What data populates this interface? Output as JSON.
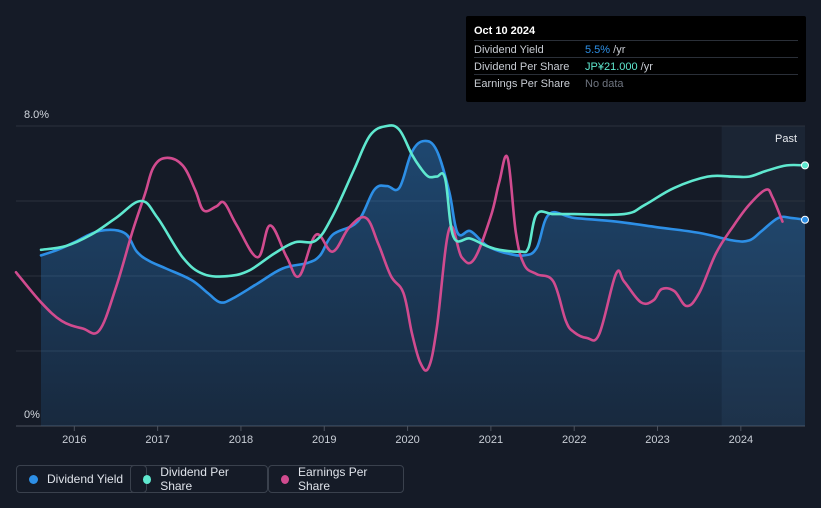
{
  "tooltip": {
    "date": "Oct 10 2024",
    "rows": [
      {
        "label": "Dividend Yield",
        "value": "5.5%",
        "unit": " /yr",
        "color": "#2d8fe6"
      },
      {
        "label": "Dividend Per Share",
        "value": "JP¥21.000",
        "unit": " /yr",
        "color": "#5fe8cf"
      },
      {
        "label": "Earnings Per Share",
        "value": "No data",
        "unit": "",
        "color": "#6f7580"
      }
    ]
  },
  "legend": [
    {
      "label": "Dividend Yield",
      "color": "#2d8fe6"
    },
    {
      "label": "Dividend Per Share",
      "color": "#5fe8cf"
    },
    {
      "label": "Earnings Per Share",
      "color": "#d14b8f"
    }
  ],
  "chart_data": {
    "type": "line",
    "title": "",
    "past_label": "Past",
    "y_axis": {
      "label_top": "8.0%",
      "label_bottom": "0%",
      "ylim": [
        0,
        8
      ]
    },
    "xlim": [
      2015.3,
      2024.77
    ],
    "x_ticks": [
      {
        "label": "2016",
        "value": 2016
      },
      {
        "label": "2017",
        "value": 2017
      },
      {
        "label": "2018",
        "value": 2018
      },
      {
        "label": "2019",
        "value": 2019
      },
      {
        "label": "2020",
        "value": 2020
      },
      {
        "label": "2021",
        "value": 2021
      },
      {
        "label": "2022",
        "value": 2022
      },
      {
        "label": "2023",
        "value": 2023
      },
      {
        "label": "2024",
        "value": 2024
      }
    ],
    "past_start": 2023.77,
    "series": [
      {
        "name": "Dividend Yield",
        "color": "#2d8fe6",
        "filled": true,
        "x": [
          2015.6,
          2015.8,
          2016.0,
          2016.3,
          2016.6,
          2016.75,
          2016.9,
          2017.1,
          2017.4,
          2017.6,
          2017.75,
          2017.9,
          2018.2,
          2018.5,
          2018.8,
          2018.95,
          2019.1,
          2019.4,
          2019.6,
          2019.75,
          2019.9,
          2020.05,
          2020.2,
          2020.35,
          2020.5,
          2020.6,
          2020.75,
          2020.9,
          2021.0,
          2021.2,
          2021.4,
          2021.55,
          2021.7,
          2022.0,
          2022.5,
          2023.0,
          2023.5,
          2023.9,
          2024.1,
          2024.25,
          2024.45,
          2024.6,
          2024.77
        ],
        "values": [
          4.55,
          4.7,
          4.9,
          5.2,
          5.15,
          4.65,
          4.4,
          4.2,
          3.9,
          3.55,
          3.3,
          3.4,
          3.8,
          4.2,
          4.35,
          4.55,
          5.1,
          5.45,
          6.3,
          6.4,
          6.35,
          7.3,
          7.6,
          7.35,
          6.25,
          5.15,
          5.2,
          4.9,
          4.75,
          4.6,
          4.55,
          4.75,
          5.65,
          5.55,
          5.45,
          5.3,
          5.15,
          4.95,
          4.95,
          5.2,
          5.55,
          5.55,
          5.5
        ]
      },
      {
        "name": "Dividend Per Share",
        "color": "#5fe8cf",
        "filled": false,
        "x": [
          2015.6,
          2015.9,
          2016.2,
          2016.5,
          2016.8,
          2017.0,
          2017.3,
          2017.55,
          2017.85,
          2018.1,
          2018.4,
          2018.65,
          2018.9,
          2019.1,
          2019.35,
          2019.55,
          2019.75,
          2019.9,
          2020.05,
          2020.15,
          2020.25,
          2020.35,
          2020.45,
          2020.55,
          2020.75,
          2020.95,
          2021.1,
          2021.35,
          2021.45,
          2021.55,
          2021.75,
          2022.0,
          2022.6,
          2022.85,
          2023.2,
          2023.6,
          2023.9,
          2024.1,
          2024.3,
          2024.55,
          2024.77
        ],
        "values": [
          4.7,
          4.8,
          5.1,
          5.55,
          6.0,
          5.55,
          4.5,
          4.05,
          4.0,
          4.15,
          4.6,
          4.9,
          4.95,
          5.6,
          6.8,
          7.75,
          8.0,
          7.9,
          7.25,
          6.9,
          6.65,
          6.65,
          6.6,
          5.05,
          5.0,
          4.8,
          4.7,
          4.65,
          4.75,
          5.65,
          5.65,
          5.65,
          5.65,
          5.9,
          6.35,
          6.65,
          6.65,
          6.65,
          6.8,
          6.95,
          6.95
        ]
      },
      {
        "name": "Earnings Per Share",
        "color": "#d14b8f",
        "filled": false,
        "x": [
          2015.3,
          2015.6,
          2015.85,
          2016.1,
          2016.3,
          2016.5,
          2016.7,
          2016.85,
          2016.95,
          2017.1,
          2017.3,
          2017.45,
          2017.55,
          2017.7,
          2017.8,
          2017.95,
          2018.2,
          2018.35,
          2018.55,
          2018.7,
          2018.9,
          2019.1,
          2019.3,
          2019.5,
          2019.65,
          2019.8,
          2019.95,
          2020.05,
          2020.15,
          2020.25,
          2020.35,
          2020.5,
          2020.65,
          2020.8,
          2021.0,
          2021.1,
          2021.2,
          2021.3,
          2021.4,
          2021.55,
          2021.75,
          2021.9,
          2022.0,
          2022.15,
          2022.3,
          2022.5,
          2022.6,
          2022.8,
          2022.95,
          2023.05,
          2023.2,
          2023.35,
          2023.5,
          2023.7,
          2023.9,
          2024.1,
          2024.3,
          2024.38,
          2024.5
        ],
        "values": [
          4.1,
          3.3,
          2.8,
          2.6,
          2.55,
          3.7,
          5.2,
          6.2,
          6.9,
          7.15,
          6.95,
          6.3,
          5.75,
          5.85,
          5.95,
          5.35,
          4.5,
          5.35,
          4.5,
          4.0,
          5.1,
          4.65,
          5.3,
          5.55,
          4.85,
          4.0,
          3.55,
          2.5,
          1.7,
          1.55,
          2.6,
          5.25,
          4.5,
          4.45,
          5.6,
          6.5,
          7.15,
          5.15,
          4.3,
          4.05,
          3.85,
          2.8,
          2.5,
          2.35,
          2.45,
          4.05,
          3.85,
          3.3,
          3.35,
          3.65,
          3.6,
          3.2,
          3.55,
          4.6,
          5.3,
          5.9,
          6.3,
          6.1,
          5.45
        ]
      }
    ]
  }
}
